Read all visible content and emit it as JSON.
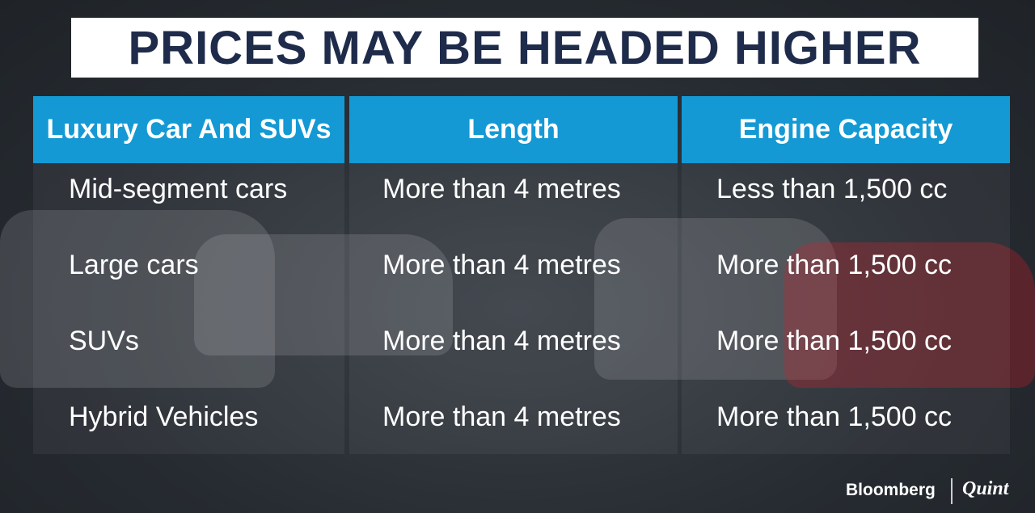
{
  "header": {
    "title": "PRICES MAY BE HEADED HIGHER"
  },
  "table": {
    "columns": [
      "Luxury Car And SUVs",
      "Length",
      "Engine Capacity"
    ],
    "rows": [
      [
        "Mid-segment cars",
        "More than 4 metres",
        "Less than 1,500 cc"
      ],
      [
        "Large cars",
        "More than 4 metres",
        "More than 1,500 cc"
      ],
      [
        "SUVs",
        "More than 4 metres",
        "More than 1,500 cc"
      ],
      [
        "Hybrid Vehicles",
        "More than 4 metres",
        "More than 1,500 cc"
      ]
    ]
  },
  "footer": {
    "brand": "Bloomberg",
    "brand2": "Quint"
  }
}
